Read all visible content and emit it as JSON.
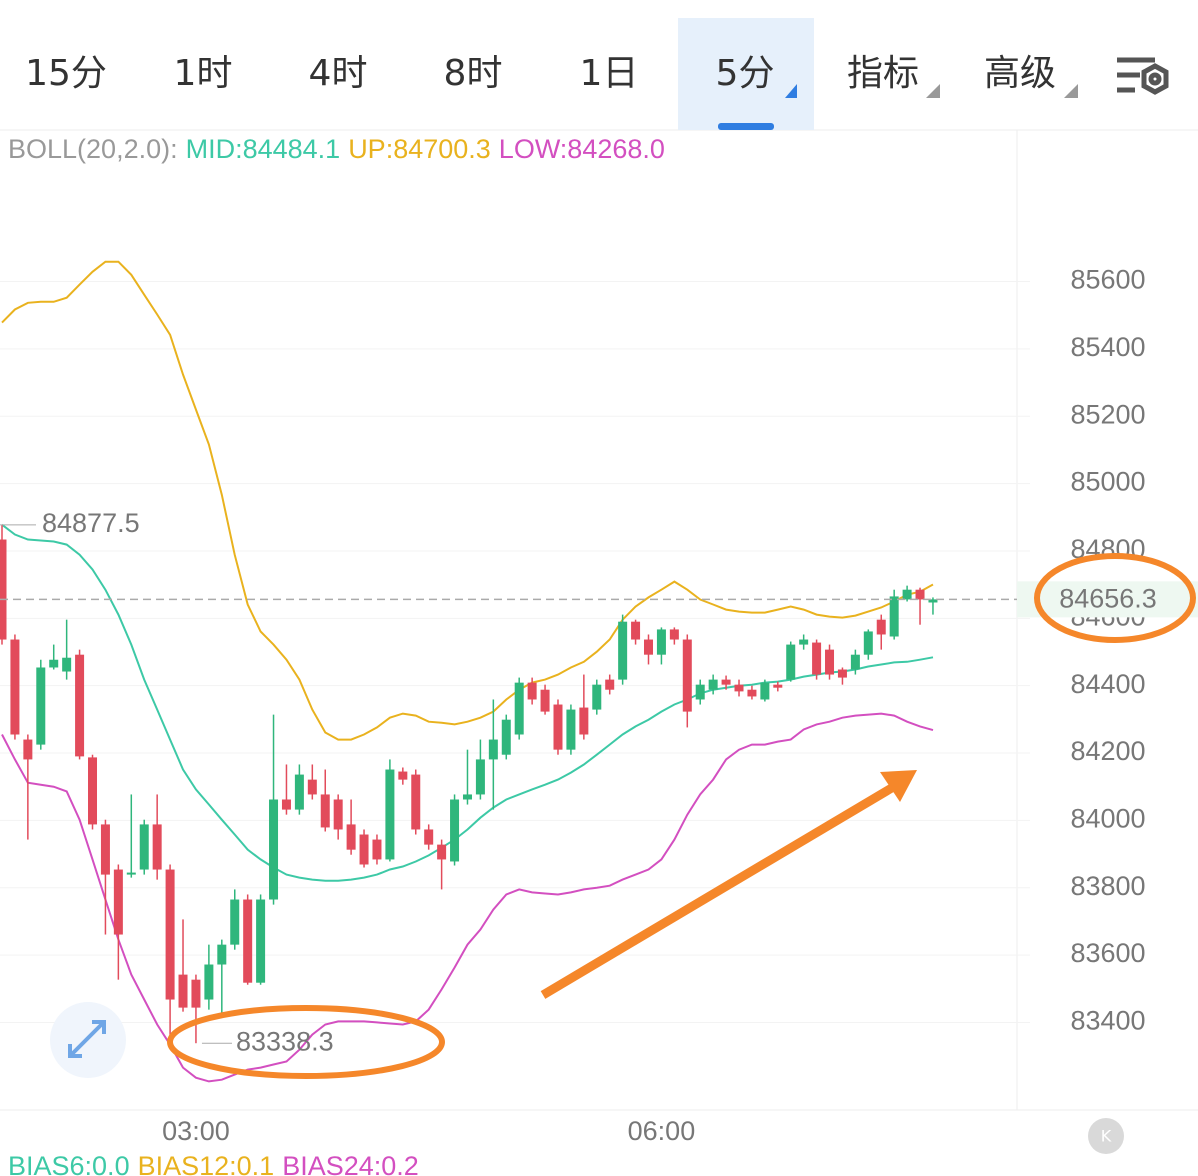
{
  "tabs": [
    "15分",
    "1时",
    "4时",
    "8时",
    "1日",
    "5分",
    "指标",
    "高级"
  ],
  "selected_tab": 5,
  "chart_data": {
    "type": "candlestick",
    "indicator_label": "BOLL(20,2.0):",
    "indicator_legend": [
      "MID:84484.1",
      "UP:84700.3",
      "LOW:84268.0"
    ],
    "footer_legend": [
      "BIAS6:0.0",
      "BIAS12:0.1",
      "BIAS24:0.2"
    ],
    "up_color": "#2fb67c",
    "down_color": "#e24b5b",
    "categories": [
      null,
      null,
      null,
      null,
      null,
      null,
      null,
      null,
      null,
      null,
      null,
      null,
      null,
      null,
      null,
      "03:00",
      null,
      null,
      null,
      null,
      null,
      null,
      null,
      null,
      null,
      null,
      null,
      null,
      null,
      null,
      null,
      null,
      null,
      null,
      null,
      null,
      null,
      null,
      null,
      null,
      null,
      null,
      null,
      null,
      null,
      null,
      null,
      null,
      null,
      null,
      null,
      "06:00",
      null,
      null,
      null,
      null,
      null,
      null,
      null,
      null,
      null,
      null,
      null,
      null,
      null,
      null,
      null,
      null,
      null,
      null,
      null,
      null,
      null
    ],
    "open": [
      84834,
      84537,
      84240,
      84225,
      84454,
      84442,
      84492,
      84187,
      83988,
      83854,
      83839,
      83854,
      83988,
      83854,
      83542,
      83527,
      83468,
      83572,
      83631,
      83765,
      83518,
      83765,
      84062,
      84032,
      84121,
      84077,
      84062,
      83988,
      83958,
      83943,
      83884,
      84145,
      84136,
      83973,
      83928,
      83878,
      84062,
      84077,
      84181,
      84195,
      84255,
      84409,
      84388,
      84344,
      84210,
      84335,
      84329,
      84418,
      84418,
      84590,
      84537,
      84492,
      84567,
      84537,
      84359,
      84388,
      84418,
      84403,
      84388,
      84359,
      84403,
      84418,
      84522,
      84528,
      84507,
      84448,
      84448,
      84492,
      84596,
      84546,
      84656,
      84685,
      84647
    ],
    "high": [
      84877.5,
      84552,
      84255,
      84477,
      84522,
      84596,
      84507,
      84195,
      84002,
      83869,
      84077,
      84002,
      84077,
      83869,
      83706,
      83542,
      83631,
      83646,
      83795,
      83780,
      83780,
      84314,
      84166,
      84166,
      84166,
      84151,
      84077,
      84062,
      83973,
      83958,
      84181,
      84157,
      84151,
      83988,
      83943,
      84077,
      84210,
      84240,
      84359,
      84314,
      84424,
      84424,
      84403,
      84359,
      84344,
      84433,
      84418,
      84433,
      84611,
      84596,
      84552,
      84573,
      84573,
      84552,
      84418,
      84433,
      84430,
      84418,
      84400,
      84418,
      84412,
      84531,
      84552,
      84537,
      84522,
      84454,
      84507,
      84567,
      84611,
      84685,
      84697,
      84691,
      84662
    ],
    "low": [
      84522,
      84240,
      83943,
      84210,
      84448,
      84418,
      84181,
      83973,
      83661,
      83527,
      83830,
      83839,
      83824,
      83349,
      83432,
      83338.3,
      83438,
      83423,
      83616,
      83512,
      83512,
      83750,
      84017,
      84017,
      84062,
      83967,
      83943,
      83898,
      83860,
      83869,
      83878,
      84106,
      83958,
      83913,
      83795,
      83866,
      84047,
      84062,
      84032,
      84181,
      84240,
      84344,
      84314,
      84195,
      84195,
      84240,
      84314,
      84374,
      84403,
      84522,
      84463,
      84463,
      84522,
      84276,
      84344,
      84374,
      84388,
      84368,
      84359,
      84353,
      84383,
      84412,
      84507,
      84418,
      84418,
      84403,
      84433,
      84477,
      84507,
      84537,
      84650,
      84581,
      84611
    ],
    "close": [
      84537,
      84255,
      84181,
      84454,
      84477,
      84483,
      84190,
      83988,
      83839,
      83661,
      83845,
      83988,
      83854,
      83468,
      83444,
      83444,
      83572,
      83631,
      83765,
      83518,
      83765,
      84062,
      84032,
      84136,
      84077,
      83979,
      83973,
      83913,
      83869,
      83884,
      84151,
      84121,
      83973,
      83928,
      83884,
      84062,
      84077,
      84181,
      84240,
      84299,
      84409,
      84359,
      84323,
      84210,
      84329,
      84255,
      84403,
      84388,
      84590,
      84537,
      84492,
      84567,
      84537,
      84323,
      84403,
      84418,
      84403,
      84383,
      84368,
      84409,
      84394,
      84522,
      84537,
      84433,
      84433,
      84424,
      84492,
      84561,
      84552,
      84665,
      84685,
      84656,
      84656.3
    ],
    "series": [
      {
        "color": "#3dc9a6",
        "values": [
          84878,
          84849,
          84834,
          84831,
          84828,
          84819,
          84789,
          84745,
          84685,
          84611,
          84522,
          84418,
          84329,
          84240,
          84151,
          84092,
          84047,
          84002,
          83958,
          83913,
          83884,
          83860,
          83839,
          83830,
          83824,
          83821,
          83821,
          83824,
          83830,
          83839,
          83854,
          83863,
          83878,
          83896,
          83919,
          83943,
          83973,
          84008,
          84038,
          84062,
          84077,
          84092,
          84106,
          84121,
          84142,
          84166,
          84195,
          84225,
          84255,
          84279,
          84299,
          84323,
          84344,
          84359,
          84377,
          84388,
          84394,
          84400,
          84403,
          84409,
          84412,
          84418,
          84427,
          84433,
          84439,
          84442,
          84448,
          84457,
          84463,
          84469,
          84471,
          84477,
          84484.1
        ]
      },
      {
        "color": "#e9b21e",
        "values": [
          85478,
          85517,
          85537,
          85540,
          85540,
          85552,
          85591,
          85629,
          85659,
          85659,
          85620,
          85561,
          85502,
          85442,
          85324,
          85220,
          85116,
          84967,
          84789,
          84641,
          84561,
          84522,
          84477,
          84418,
          84329,
          84261,
          84240,
          84240,
          84255,
          84276,
          84305,
          84317,
          84311,
          84293,
          84290,
          84285,
          84293,
          84305,
          84323,
          84359,
          84388,
          84409,
          84418,
          84433,
          84454,
          84471,
          84501,
          84537,
          84596,
          84635,
          84662,
          84685,
          84709,
          84685,
          84656,
          84641,
          84626,
          84620,
          84617,
          84617,
          84626,
          84635,
          84626,
          84611,
          84605,
          84602,
          84608,
          84620,
          84632,
          84650,
          84670,
          84679,
          84700.3
        ]
      },
      {
        "color": "#d34fc0",
        "values": [
          84255,
          84181,
          84112,
          84106,
          84100,
          84086,
          84002,
          83884,
          83765,
          83646,
          83542,
          83468,
          83394,
          83334,
          83266,
          83236,
          83225,
          83230,
          83245,
          83260,
          83266,
          83275,
          83284,
          83319,
          83364,
          83394,
          83403,
          83403,
          83403,
          83400,
          83397,
          83394,
          83403,
          83438,
          83498,
          83563,
          83631,
          83676,
          83735,
          83780,
          83795,
          83786,
          83783,
          83780,
          83786,
          83795,
          83800,
          83806,
          83824,
          83839,
          83854,
          83884,
          83943,
          84017,
          84077,
          84121,
          84181,
          84210,
          84225,
          84225,
          84234,
          84240,
          84270,
          84285,
          84293,
          84305,
          84311,
          84314,
          84317,
          84311,
          84293,
          84279,
          84268.0
        ]
      }
    ],
    "ylim": [
      83140,
      86050
    ],
    "yticks": [
      83400,
      83600,
      83800,
      84000,
      84200,
      84400,
      84600,
      84800,
      85000,
      85200,
      85400,
      85600
    ],
    "grid": true
  }
}
